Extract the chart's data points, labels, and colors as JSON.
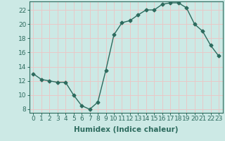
{
  "x": [
    0,
    1,
    2,
    3,
    4,
    5,
    6,
    7,
    8,
    9,
    10,
    11,
    12,
    13,
    14,
    15,
    16,
    17,
    18,
    19,
    20,
    21,
    22,
    23
  ],
  "y": [
    13.0,
    12.2,
    12.0,
    11.8,
    11.8,
    10.0,
    8.5,
    8.0,
    9.0,
    13.5,
    18.5,
    20.2,
    20.5,
    21.3,
    22.0,
    22.0,
    22.8,
    23.0,
    23.0,
    22.3,
    20.0,
    19.0,
    17.0,
    15.5
  ],
  "line_color": "#2d6b5e",
  "marker": "D",
  "marker_size": 2.5,
  "bg_color": "#cce9e5",
  "grid_color": "#e8c8c8",
  "xlabel": "Humidex (Indice chaleur)",
  "xlim": [
    -0.5,
    23.5
  ],
  "ylim": [
    7.5,
    23.2
  ],
  "yticks": [
    8,
    10,
    12,
    14,
    16,
    18,
    20,
    22
  ],
  "xticks": [
    0,
    1,
    2,
    3,
    4,
    5,
    6,
    7,
    8,
    9,
    10,
    11,
    12,
    13,
    14,
    15,
    16,
    17,
    18,
    19,
    20,
    21,
    22,
    23
  ],
  "xlabel_color": "#2d6b5e",
  "tick_color": "#2d6b5e",
  "label_fontsize": 7.5,
  "tick_fontsize": 6.5
}
